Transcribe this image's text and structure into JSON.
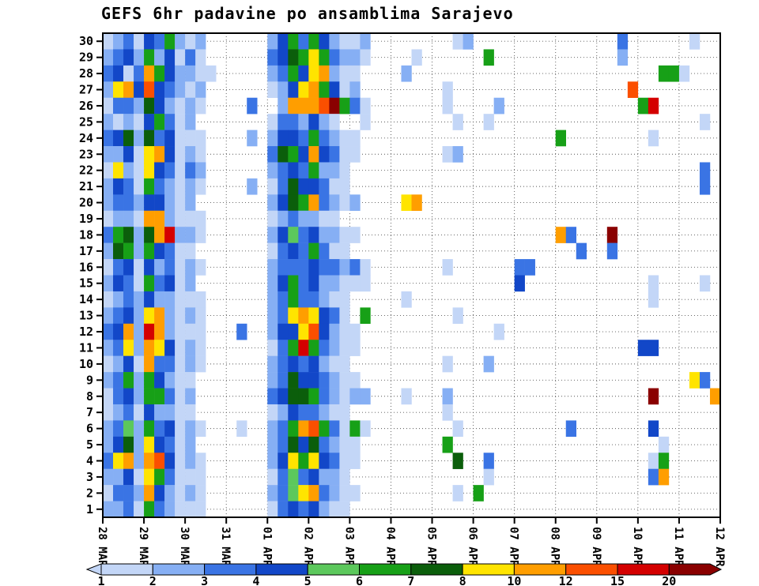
{
  "chart_data": {
    "type": "heatmap",
    "title": "GEFS 6hr padavine po ansamblima Sarajevo",
    "x_axis": {
      "tick_labels": [
        "28 MAR",
        "29 MAR",
        "30 MAR",
        "31 MAR",
        "01 APR",
        "02 APR",
        "03 APR",
        "04 APR",
        "05 APR",
        "06 APR",
        "07 APR",
        "08 APR",
        "09 APR",
        "10 APR",
        "11 APR",
        "12 APR"
      ],
      "columns_per_day": 4,
      "total_columns": 60
    },
    "y_axis": {
      "tick_labels": [
        "30",
        "29",
        "28",
        "27",
        "26",
        "25",
        "24",
        "23",
        "22",
        "21",
        "20",
        "19",
        "18",
        "17",
        "16",
        "15",
        "14",
        "13",
        "12",
        "11",
        "10",
        "9",
        "8",
        "7",
        "6",
        "5",
        "4",
        "3",
        "2",
        "1"
      ]
    },
    "palette": {
      "1": "#c3d6f7",
      "2": "#86aff4",
      "3": "#3a74e4",
      "4": "#1247c8",
      "5": "#5cc85c",
      "6": "#17a017",
      "7": "#0b5e0b",
      "8": "#ffe400",
      "9": "#ff9e00",
      "A": "#fb4f00",
      "B": "#d40000",
      "C": "#8a0000"
    },
    "legend_bins": {
      "0": "none (white)",
      "1": "1-2",
      "2": "2-3",
      "3": "3-4",
      "4": "4-5",
      "5": "5-6",
      "6": "6-7",
      "7": "7-8",
      "8": "8-10",
      "9": "10-12",
      "A": "12-15",
      "B": "15-20",
      "C": ">20"
    },
    "colorbar": {
      "tick_labels": [
        "1",
        "2",
        "3",
        "4",
        "5",
        "6",
        "7",
        "8",
        "10",
        "12",
        "15",
        "20"
      ],
      "segment_codes": "123456789AB",
      "arrow_left_code": "1",
      "arrow_right_code": "C"
    },
    "rows": [
      {
        "member": 30,
        "days": [
          "1231",
          "4362",
          "1200",
          "0000",
          "2463",
          "6421",
          "1200",
          "0000",
          "0012",
          "0000",
          "0000",
          "0000",
          "0030",
          "0000",
          "0100"
        ]
      },
      {
        "member": 29,
        "days": [
          "2342",
          "6241",
          "3100",
          "0000",
          "3476",
          "8632",
          "2100",
          "0010",
          "0000",
          "0600",
          "0000",
          "0000",
          "0020",
          "0000",
          "0000"
        ]
      },
      {
        "member": 28,
        "days": [
          "3413",
          "9642",
          "2110",
          "0000",
          "2364",
          "8921",
          "1000",
          "0200",
          "0000",
          "0000",
          "0000",
          "0000",
          "0000",
          "0066",
          "1000"
        ]
      },
      {
        "member": 27,
        "days": [
          "2894",
          "A432",
          "1200",
          "0000",
          "1248",
          "9641",
          "2000",
          "0000",
          "0100",
          "0000",
          "0000",
          "0000",
          "000A",
          "0000",
          "0000"
        ]
      },
      {
        "member": 26,
        "days": [
          "1332",
          "7421",
          "2100",
          "0030",
          "0299",
          "9AC6",
          "3100",
          "0000",
          "0100",
          "0020",
          "0000",
          "0000",
          "0000",
          "6B00",
          "0000"
        ]
      },
      {
        "member": 25,
        "days": [
          "2121",
          "4631",
          "2000",
          "0000",
          "1332",
          "4210",
          "0100",
          "0000",
          "0010",
          "0100",
          "0000",
          "0000",
          "0000",
          "0000",
          "0010"
        ]
      },
      {
        "member": 24,
        "days": [
          "3472",
          "7341",
          "1100",
          "0020",
          "2443",
          "6321",
          "1000",
          "0000",
          "0000",
          "0000",
          "0000",
          "6000",
          "0000",
          "0100",
          "0000"
        ]
      },
      {
        "member": 23,
        "days": [
          "2241",
          "8941",
          "2100",
          "0000",
          "3764",
          "9431",
          "1000",
          "0000",
          "0120",
          "0000",
          "0000",
          "0000",
          "0000",
          "0000",
          "0000"
        ]
      },
      {
        "member": 22,
        "days": [
          "1821",
          "8431",
          "3200",
          "0000",
          "2343",
          "6221",
          "0000",
          "0000",
          "0000",
          "0000",
          "0000",
          "0000",
          "0000",
          "0000",
          "0030"
        ]
      },
      {
        "member": 21,
        "days": [
          "2431",
          "6321",
          "2100",
          "0020",
          "1374",
          "4311",
          "0000",
          "0000",
          "0000",
          "0000",
          "0000",
          "0000",
          "0000",
          "0000",
          "0030"
        ]
      },
      {
        "member": 20,
        "days": [
          "2332",
          "4421",
          "2000",
          "0000",
          "2476",
          "9321",
          "2000",
          "0890",
          "0000",
          "0000",
          "0000",
          "0000",
          "0000",
          "0000",
          "0000"
        ]
      },
      {
        "member": 19,
        "days": [
          "1221",
          "9921",
          "1100",
          "0000",
          "1232",
          "2110",
          "0000",
          "0000",
          "0000",
          "0000",
          "0000",
          "0000",
          "0000",
          "0000",
          "0000"
        ]
      },
      {
        "member": 18,
        "days": [
          "3672",
          "79B2",
          "2100",
          "0000",
          "2453",
          "4221",
          "1000",
          "0000",
          "0000",
          "0000",
          "0000",
          "9300",
          "0C00",
          "0000",
          "0000"
        ]
      },
      {
        "member": 17,
        "days": [
          "2762",
          "6431",
          "1000",
          "0000",
          "1343",
          "6311",
          "0000",
          "0000",
          "0000",
          "0000",
          "0000",
          "0030",
          "0300",
          "0000",
          "0000"
        ]
      },
      {
        "member": 16,
        "days": [
          "1341",
          "4231",
          "2100",
          "0000",
          "2333",
          "4332",
          "3100",
          "0000",
          "0100",
          "0000",
          "3300",
          "0000",
          "0000",
          "0000",
          "0000"
        ]
      },
      {
        "member": 15,
        "days": [
          "2431",
          "6341",
          "2000",
          "0000",
          "2463",
          "4221",
          "1100",
          "0000",
          "0000",
          "0000",
          "4000",
          "0000",
          "0000",
          "0100",
          "0010"
        ]
      },
      {
        "member": 14,
        "days": [
          "1232",
          "4221",
          "1100",
          "0000",
          "2363",
          "3211",
          "0000",
          "0100",
          "0000",
          "0000",
          "0000",
          "0000",
          "0000",
          "0100",
          "0000"
        ]
      },
      {
        "member": 13,
        "days": [
          "2342",
          "8921",
          "2100",
          "0000",
          "2389",
          "8431",
          "0600",
          "0000",
          "0010",
          "0000",
          "0000",
          "0000",
          "0000",
          "0000",
          "0000"
        ]
      },
      {
        "member": 12,
        "days": [
          "3492",
          "B921",
          "1100",
          "0300",
          "2448",
          "A421",
          "1000",
          "0000",
          "0000",
          "0010",
          "0000",
          "0000",
          "0000",
          "0000",
          "0000"
        ]
      },
      {
        "member": 11,
        "days": [
          "2382",
          "9841",
          "2100",
          "0000",
          "136B",
          "6321",
          "1000",
          "0000",
          "0000",
          "0000",
          "0000",
          "0000",
          "0000",
          "4400",
          "0000"
        ]
      },
      {
        "member": 10,
        "days": [
          "1241",
          "9331",
          "2100",
          "0000",
          "2343",
          "4211",
          "0000",
          "0000",
          "0100",
          "0200",
          "0000",
          "0000",
          "0000",
          "0000",
          "0000"
        ]
      },
      {
        "member": 9,
        "days": [
          "2362",
          "6421",
          "1000",
          "0000",
          "2374",
          "4321",
          "1000",
          "0000",
          "0000",
          "0000",
          "0000",
          "0000",
          "0000",
          "0000",
          "0830"
        ]
      },
      {
        "member": 8,
        "days": [
          "1342",
          "6631",
          "2000",
          "0000",
          "3477",
          "6321",
          "2200",
          "0100",
          "0200",
          "0000",
          "0000",
          "0000",
          "0000",
          "0C00",
          "0009"
        ]
      },
      {
        "member": 7,
        "days": [
          "1231",
          "4221",
          "1000",
          "0000",
          "1243",
          "3211",
          "0000",
          "0000",
          "0100",
          "0000",
          "0000",
          "0000",
          "0000",
          "0000",
          "0000"
        ]
      },
      {
        "member": 6,
        "days": [
          "2352",
          "6341",
          "2100",
          "0100",
          "2369",
          "A631",
          "6100",
          "0000",
          "0010",
          "0000",
          "0000",
          "0300",
          "0000",
          "0400",
          "0000"
        ]
      },
      {
        "member": 5,
        "days": [
          "2472",
          "8431",
          "2000",
          "0000",
          "2374",
          "7321",
          "1000",
          "0000",
          "0600",
          "0000",
          "0000",
          "0000",
          "0000",
          "0010",
          "0000"
        ]
      },
      {
        "member": 4,
        "days": [
          "3892",
          "9A41",
          "2100",
          "0000",
          "2486",
          "8431",
          "1000",
          "0000",
          "0070",
          "0300",
          "0000",
          "0000",
          "0000",
          "0160",
          "0000"
        ]
      },
      {
        "member": 3,
        "days": [
          "2241",
          "8631",
          "1100",
          "0000",
          "1353",
          "4221",
          "0000",
          "0000",
          "0000",
          "0100",
          "0000",
          "0000",
          "0000",
          "0390",
          "0000"
        ]
      },
      {
        "member": 2,
        "days": [
          "1332",
          "9421",
          "2100",
          "0000",
          "2358",
          "9321",
          "1000",
          "0000",
          "0010",
          "6000",
          "0000",
          "0000",
          "0000",
          "0000",
          "0000"
        ]
      },
      {
        "member": 1,
        "days": [
          "2231",
          "6321",
          "1100",
          "0000",
          "1343",
          "4211",
          "0000",
          "0000",
          "0000",
          "0000",
          "0000",
          "0000",
          "0000",
          "0000",
          "0000"
        ]
      }
    ]
  }
}
